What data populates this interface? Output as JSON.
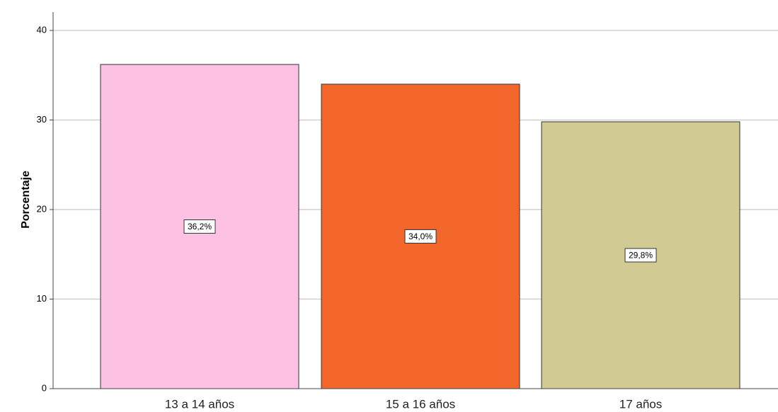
{
  "chart_data": {
    "type": "bar",
    "categories": [
      "13 a 14 años",
      "15 a 16 años",
      "17 años"
    ],
    "values": [
      36.2,
      34.0,
      29.8
    ],
    "data_labels": [
      "36,2%",
      "34,0%",
      "29,8%"
    ],
    "colors": [
      "#fcc1e3",
      "#f2662b",
      "#d1ca92"
    ],
    "ylabel": "Porcentaje",
    "ylim": [
      0,
      40
    ],
    "yticks": [
      "0",
      "10",
      "20",
      "30",
      "40"
    ],
    "grid": true
  }
}
